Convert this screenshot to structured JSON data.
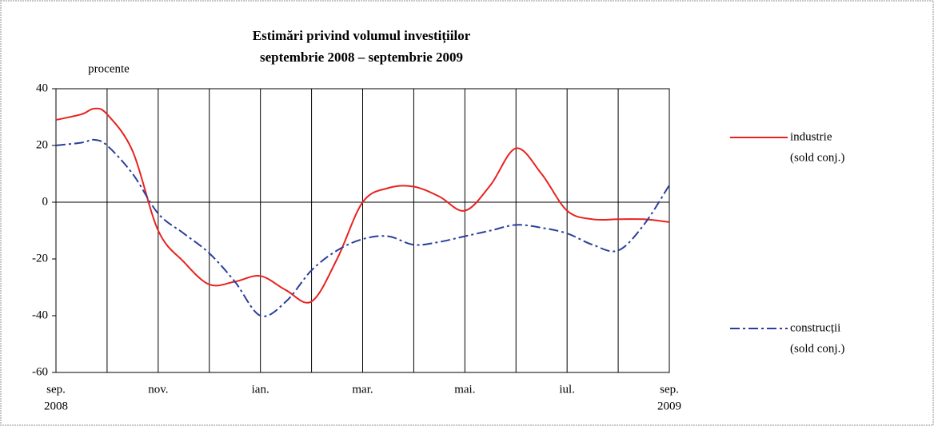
{
  "chart_data": {
    "type": "line",
    "title": [
      "Estimări privind volumul investițiilor",
      "septembrie 2008 – septembrie 2009"
    ],
    "y_label": "procente",
    "x": [
      0,
      0.5,
      0.75,
      1,
      1.5,
      2,
      2.5,
      3,
      3.5,
      4,
      4.5,
      5,
      5.5,
      6,
      6.5,
      7,
      7.5,
      8,
      8.5,
      9,
      9.5,
      10,
      10.5,
      11,
      11.5,
      12
    ],
    "series": [
      {
        "name": "industrie",
        "note": "(sold conj.)",
        "color": "#e8221f",
        "dash": "solid",
        "values": [
          29,
          31,
          33,
          31,
          18,
          -10,
          -21,
          -29,
          -28,
          -26,
          -31,
          -35,
          -20,
          0,
          5,
          5.5,
          2,
          -3,
          6,
          19,
          10,
          -3,
          -6,
          -6,
          -6,
          -7
        ]
      },
      {
        "name": "construcții",
        "note": "(sold conj.)",
        "color": "#2a3f9a",
        "dash": "dashdot",
        "values": [
          20,
          21,
          22,
          20,
          10,
          -4,
          -11,
          -18,
          -28,
          -40,
          -35,
          -24,
          -17,
          -13,
          -12,
          -15,
          -14,
          -12,
          -10,
          -8,
          -9,
          -11,
          -15,
          -17,
          -8,
          6
        ]
      }
    ],
    "xlim": [
      0,
      12
    ],
    "xticks": [
      {
        "value": 0,
        "label": "sep."
      },
      {
        "value": 2,
        "label": "nov."
      },
      {
        "value": 4,
        "label": "ian."
      },
      {
        "value": 6,
        "label": "mar."
      },
      {
        "value": 8,
        "label": "mai."
      },
      {
        "value": 10,
        "label": "iul."
      },
      {
        "value": 12,
        "label": "sep."
      }
    ],
    "xgrid": [
      1,
      2,
      3,
      4,
      5,
      6,
      7,
      8,
      9,
      10,
      11
    ],
    "year_labels": [
      {
        "value": 0,
        "label": "2008"
      },
      {
        "value": 12,
        "label": "2009"
      }
    ],
    "ylim": [
      -60,
      40
    ],
    "yticks": [
      -60,
      -40,
      -20,
      0,
      20,
      40
    ],
    "grid": true
  }
}
